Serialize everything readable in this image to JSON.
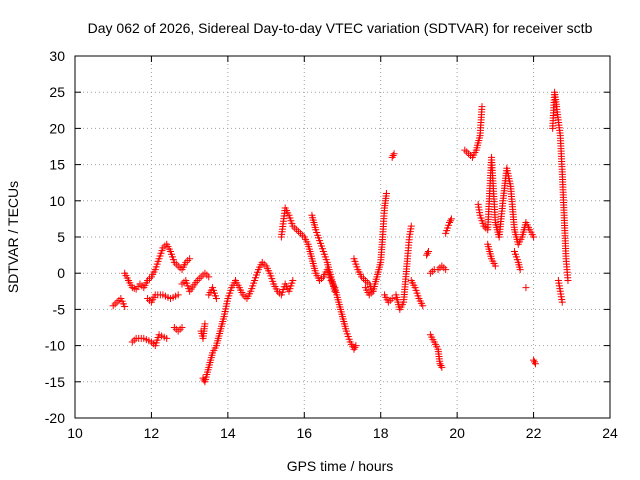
{
  "chart_data": {
    "type": "scatter",
    "title": "Day 062 of 2026, Sidereal Day-to-day VTEC variation (SDTVAR) for receiver sctb",
    "xlabel": "GPS time / hours",
    "ylabel": "SDTVAR / TECUs",
    "xlim": [
      10,
      24
    ],
    "ylim": [
      -20,
      30
    ],
    "xticks": [
      "10",
      "12",
      "14",
      "16",
      "18",
      "20",
      "22",
      "24"
    ],
    "yticks": [
      "-20",
      "-15",
      "-10",
      "-5",
      "0",
      "5",
      "10",
      "15",
      "20",
      "25",
      "30"
    ],
    "grid": true,
    "marker": "+",
    "color": "#ff0000",
    "series": [
      {
        "name": "SDTVAR",
        "segments": [
          [
            [
              11.0,
              -4.5
            ],
            [
              11.1,
              -4.0
            ],
            [
              11.2,
              -3.5
            ],
            [
              11.3,
              -4.6
            ]
          ],
          [
            [
              11.3,
              0.0
            ],
            [
              11.4,
              -1.0
            ],
            [
              11.5,
              -2.0
            ],
            [
              11.6,
              -2.2
            ],
            [
              11.7,
              -1.5
            ],
            [
              11.8,
              -2.0
            ],
            [
              11.9,
              -1.0
            ],
            [
              12.0,
              -0.5
            ],
            [
              12.1,
              0.5
            ],
            [
              12.2,
              2.0
            ],
            [
              12.3,
              3.5
            ],
            [
              12.4,
              4.0
            ],
            [
              12.5,
              3.0
            ],
            [
              12.6,
              1.5
            ],
            [
              12.7,
              1.0
            ],
            [
              12.8,
              0.5
            ],
            [
              12.9,
              1.5
            ],
            [
              13.0,
              2.0
            ]
          ],
          [
            [
              11.5,
              -9.5
            ],
            [
              11.6,
              -9.0
            ],
            [
              11.8,
              -9.0
            ],
            [
              12.0,
              -9.5
            ],
            [
              12.1,
              -10.0
            ],
            [
              12.2,
              -8.5
            ],
            [
              12.4,
              -9.0
            ]
          ],
          [
            [
              11.9,
              -3.5
            ],
            [
              12.0,
              -4.0
            ],
            [
              12.1,
              -3.0
            ],
            [
              12.3,
              -3.0
            ],
            [
              12.5,
              -3.5
            ],
            [
              12.7,
              -3.0
            ]
          ],
          [
            [
              12.6,
              -7.5
            ],
            [
              12.7,
              -8.0
            ],
            [
              12.8,
              -7.5
            ]
          ],
          [
            [
              12.8,
              -1.5
            ],
            [
              12.9,
              -1.0
            ],
            [
              13.0,
              -2.5
            ],
            [
              13.2,
              -1.0
            ],
            [
              13.3,
              -0.5
            ],
            [
              13.4,
              0.0
            ],
            [
              13.5,
              -0.5
            ]
          ],
          [
            [
              13.3,
              -8.0
            ],
            [
              13.35,
              -9.0
            ],
            [
              13.4,
              -7.0
            ]
          ],
          [
            [
              13.35,
              -14.5
            ],
            [
              13.4,
              -15.0
            ],
            [
              13.5,
              -13.0
            ],
            [
              13.6,
              -11.0
            ],
            [
              13.7,
              -10.0
            ],
            [
              13.8,
              -8.0
            ],
            [
              13.9,
              -6.0
            ],
            [
              14.0,
              -3.5
            ],
            [
              14.1,
              -2.0
            ],
            [
              14.2,
              -1.0
            ],
            [
              14.3,
              -2.0
            ],
            [
              14.4,
              -3.0
            ],
            [
              14.5,
              -3.5
            ],
            [
              14.6,
              -2.5
            ],
            [
              14.7,
              -1.0
            ],
            [
              14.8,
              0.5
            ],
            [
              14.9,
              1.5
            ],
            [
              15.0,
              1.0
            ],
            [
              15.1,
              0.0
            ],
            [
              15.2,
              -1.5
            ],
            [
              15.3,
              -2.5
            ],
            [
              15.4,
              -3.0
            ],
            [
              15.5,
              -1.5
            ],
            [
              15.6,
              -2.5
            ],
            [
              15.7,
              -1.0
            ]
          ],
          [
            [
              13.5,
              -3.0
            ],
            [
              13.6,
              -2.0
            ],
            [
              13.7,
              -3.5
            ]
          ],
          [
            [
              15.4,
              5.0
            ],
            [
              15.5,
              9.0
            ],
            [
              15.6,
              8.0
            ],
            [
              15.7,
              6.5
            ],
            [
              15.8,
              6.0
            ],
            [
              15.9,
              5.5
            ],
            [
              16.0,
              5.0
            ],
            [
              16.1,
              4.0
            ],
            [
              16.2,
              2.0
            ],
            [
              16.3,
              0.0
            ],
            [
              16.4,
              -1.0
            ],
            [
              16.5,
              -0.5
            ],
            [
              16.6,
              0.5
            ],
            [
              16.7,
              -1.0
            ],
            [
              16.8,
              -2.0
            ],
            [
              16.9,
              -4.0
            ],
            [
              17.0,
              -6.0
            ],
            [
              17.1,
              -8.0
            ],
            [
              17.2,
              -9.5
            ],
            [
              17.3,
              -10.5
            ],
            [
              17.35,
              -10.0
            ]
          ],
          [
            [
              16.2,
              8.0
            ],
            [
              16.3,
              6.0
            ],
            [
              16.4,
              4.5
            ],
            [
              16.5,
              3.0
            ],
            [
              16.6,
              1.5
            ],
            [
              16.7,
              -0.5
            ],
            [
              16.8,
              -2.5
            ]
          ],
          [
            [
              17.3,
              2.0
            ],
            [
              17.4,
              0.5
            ],
            [
              17.5,
              -0.5
            ],
            [
              17.6,
              -1.0
            ],
            [
              17.7,
              -1.5
            ],
            [
              17.8,
              -2.5
            ],
            [
              17.9,
              -0.5
            ],
            [
              18.0,
              1.5
            ],
            [
              18.05,
              5.0
            ],
            [
              18.1,
              9.0
            ],
            [
              18.15,
              11.0
            ]
          ],
          [
            [
              17.6,
              -2.0
            ],
            [
              17.7,
              -3.0
            ],
            [
              17.8,
              -2.5
            ]
          ],
          [
            [
              18.1,
              -3.0
            ],
            [
              18.2,
              -4.0
            ],
            [
              18.3,
              -3.5
            ]
          ],
          [
            [
              18.3,
              16.0
            ],
            [
              18.35,
              16.5
            ]
          ],
          [
            [
              18.4,
              -3.0
            ],
            [
              18.5,
              -5.0
            ],
            [
              18.6,
              -4.0
            ],
            [
              18.7,
              2.0
            ],
            [
              18.75,
              5.0
            ],
            [
              18.8,
              6.5
            ]
          ],
          [
            [
              18.8,
              -1.0
            ],
            [
              18.9,
              -2.0
            ],
            [
              19.0,
              -3.5
            ],
            [
              19.1,
              -4.5
            ]
          ],
          [
            [
              19.2,
              2.5
            ],
            [
              19.25,
              3.0
            ]
          ],
          [
            [
              19.3,
              -8.5
            ],
            [
              19.4,
              -9.5
            ],
            [
              19.5,
              -10.5
            ],
            [
              19.55,
              -12.5
            ],
            [
              19.6,
              -13.0
            ]
          ],
          [
            [
              19.3,
              0.0
            ],
            [
              19.4,
              0.5
            ],
            [
              19.5,
              0.5
            ],
            [
              19.6,
              1.0
            ],
            [
              19.7,
              0.5
            ]
          ],
          [
            [
              19.7,
              5.5
            ],
            [
              19.8,
              7.0
            ],
            [
              19.85,
              7.5
            ]
          ],
          [
            [
              20.2,
              17.0
            ],
            [
              20.3,
              16.5
            ],
            [
              20.4,
              16.0
            ],
            [
              20.5,
              17.0
            ],
            [
              20.6,
              19.0
            ],
            [
              20.65,
              23.0
            ]
          ],
          [
            [
              20.55,
              9.5
            ],
            [
              20.6,
              8.0
            ],
            [
              20.7,
              6.5
            ],
            [
              20.8,
              6.0
            ],
            [
              20.9,
              16.0
            ],
            [
              21.0,
              7.0
            ],
            [
              21.1,
              5.0
            ],
            [
              21.2,
              10.0
            ],
            [
              21.3,
              14.5
            ],
            [
              21.4,
              12.0
            ],
            [
              21.5,
              6.0
            ],
            [
              21.6,
              4.0
            ],
            [
              21.7,
              5.0
            ],
            [
              21.8,
              7.0
            ],
            [
              21.9,
              6.0
            ],
            [
              22.0,
              5.0
            ]
          ],
          [
            [
              20.8,
              4.0
            ],
            [
              20.9,
              2.0
            ],
            [
              21.0,
              1.0
            ]
          ],
          [
            [
              21.5,
              3.0
            ],
            [
              21.6,
              1.5
            ],
            [
              21.65,
              0.5
            ]
          ],
          [
            [
              21.8,
              -2.0
            ]
          ],
          [
            [
              22.0,
              -12.0
            ],
            [
              22.05,
              -12.5
            ]
          ],
          [
            [
              22.5,
              20.0
            ],
            [
              22.55,
              25.0
            ],
            [
              22.6,
              23.0
            ],
            [
              22.7,
              19.0
            ],
            [
              22.75,
              14.0
            ],
            [
              22.8,
              8.0
            ],
            [
              22.85,
              2.0
            ],
            [
              22.9,
              -1.0
            ]
          ],
          [
            [
              22.65,
              -1.0
            ],
            [
              22.7,
              -2.5
            ],
            [
              22.75,
              -4.0
            ]
          ]
        ]
      }
    ]
  }
}
